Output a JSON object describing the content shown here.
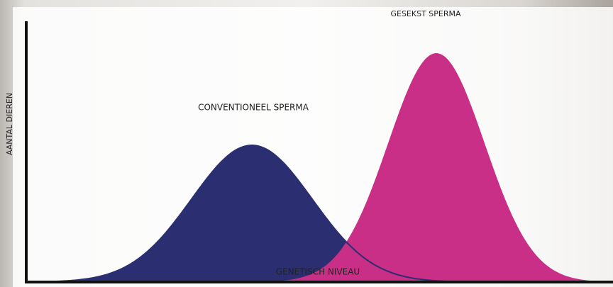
{
  "curves": {
    "conventional": {
      "label": "CONVENTIONEEL SPERMA"
    },
    "sexed": {
      "label": "GESEKST SPERMA"
    }
  },
  "axes": {
    "y_label": "AANTAL DIEREN",
    "x_label": "GENETISCH NIVEAU"
  }
}
